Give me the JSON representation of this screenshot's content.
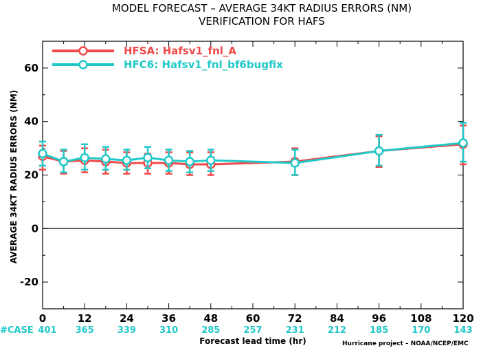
{
  "chart_data": {
    "type": "line",
    "title": "MODEL FORECAST – AVERAGE 34KT RADIUS ERRORS (NM)",
    "subtitle": "VERIFICATION FOR HAFS",
    "xlabel": "Forecast lead time (hr)",
    "ylabel": "AVERAGE 34KT RADIUS ERRORS (NM)",
    "xlim": [
      0,
      120
    ],
    "ylim": [
      -30,
      70
    ],
    "x_ticks": [
      0,
      12,
      24,
      36,
      48,
      60,
      72,
      84,
      96,
      108,
      120
    ],
    "y_ticks": [
      -20,
      0,
      20,
      40,
      60
    ],
    "grid": false,
    "legend_position": "top-left",
    "credit": "Hurricane project – NOAA/NCEP/EMC",
    "case_label": "#CASE",
    "case_counts": [
      {
        "x": 0,
        "n": 401
      },
      {
        "x": 12,
        "n": 365
      },
      {
        "x": 24,
        "n": 339
      },
      {
        "x": 36,
        "n": 310
      },
      {
        "x": 48,
        "n": 285
      },
      {
        "x": 60,
        "n": 257
      },
      {
        "x": 72,
        "n": 231
      },
      {
        "x": 84,
        "n": 212
      },
      {
        "x": 96,
        "n": 185
      },
      {
        "x": 108,
        "n": 170
      },
      {
        "x": 120,
        "n": 143
      }
    ],
    "series": [
      {
        "name": "HFSA: Hafsv1_fnl_A",
        "color": "#f04848",
        "x": [
          0,
          6,
          12,
          18,
          24,
          30,
          36,
          42,
          48,
          72,
          96,
          120
        ],
        "y": [
          27,
          25,
          25.5,
          25,
          24.5,
          24.5,
          24.5,
          24,
          24,
          25,
          29,
          31.5
        ],
        "err_low": [
          22,
          20.5,
          21,
          20.5,
          20.5,
          20.5,
          20.5,
          20,
          20,
          20,
          23,
          24
        ],
        "err_high": [
          31,
          29,
          30,
          29.5,
          28.5,
          28,
          28.5,
          28.5,
          28.5,
          30,
          34.5,
          38.5
        ]
      },
      {
        "name": "HFC6: Hafsv1_fnl_bf6bugfix",
        "color": "#20c8c8",
        "x": [
          0,
          6,
          12,
          18,
          24,
          30,
          36,
          42,
          48,
          72,
          96,
          120
        ],
        "y": [
          28,
          25,
          26.5,
          26,
          25.5,
          26.5,
          25.5,
          25,
          25.5,
          24.5,
          29,
          32
        ],
        "err_low": [
          23.5,
          21,
          22,
          22,
          22,
          22.5,
          21.5,
          21,
          21.5,
          20,
          23.5,
          25
        ],
        "err_high": [
          32.5,
          29.5,
          31.5,
          30.5,
          29.5,
          30.5,
          29.5,
          29,
          29.5,
          29.5,
          35,
          39.5
        ]
      }
    ]
  }
}
